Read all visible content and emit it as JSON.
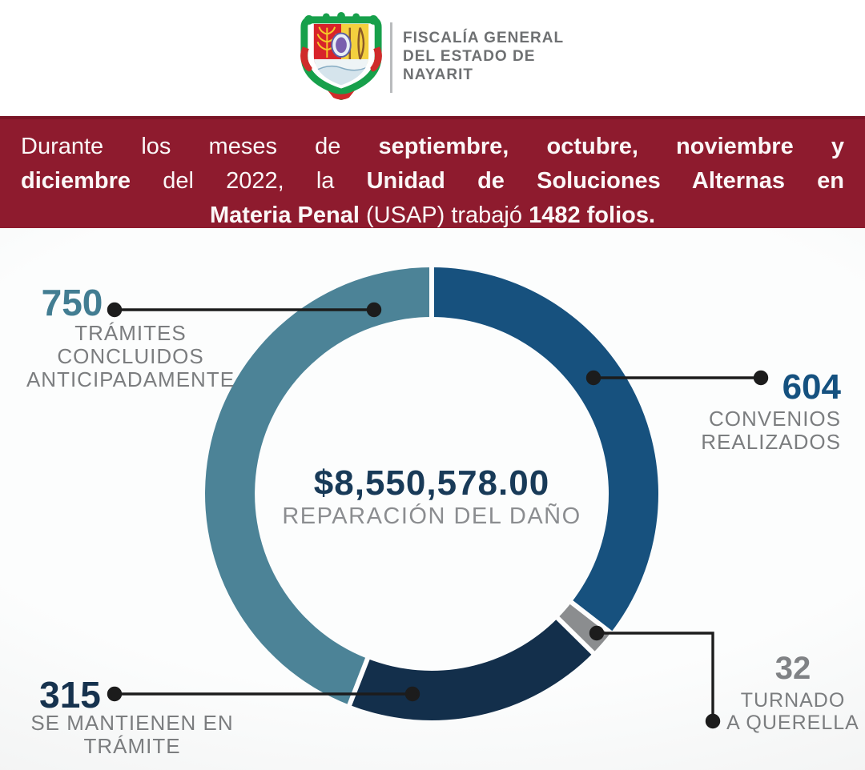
{
  "header": {
    "logo": "nayarit-coat-of-arms",
    "org_name_lines": [
      "FISCALÍA GENERAL",
      "DEL ESTADO DE",
      "NAYARIT"
    ]
  },
  "banner": {
    "bg_color": "#8e1b2e",
    "lines": [
      [
        {
          "text": "Durante los meses de ",
          "bold": false
        },
        {
          "text": "septiembre, octubre, noviembre y",
          "bold": true
        }
      ],
      [
        {
          "text": "diciembre",
          "bold": true
        },
        {
          "text": " del 2022, la ",
          "bold": false
        },
        {
          "text": "Unidad de Soluciones Alternas en",
          "bold": true
        }
      ],
      [
        {
          "text": "Materia Penal",
          "bold": true
        },
        {
          "text": " (USAP) trabajó ",
          "bold": false
        },
        {
          "text": "1482 folios.",
          "bold": true
        }
      ]
    ]
  },
  "chart_data": {
    "type": "pie",
    "subtype": "donut",
    "title": "$8,550,578.00",
    "subtitle": "REPARACIÓN DEL DAÑO",
    "total_folios_worked": 1482,
    "start_angle_deg": 0,
    "direction": "clockwise",
    "connector_color": "#1c1c1c",
    "divider_color": "#fdfdfd",
    "segments": [
      {
        "id": "convenios-realizados",
        "value": 604,
        "color": "#17517e",
        "callout_value": "604",
        "callout_value_color": "#15517f",
        "callout_lines": [
          "CONVENIOS",
          "REALIZADOS"
        ]
      },
      {
        "id": "turnado-a-querella",
        "value": 32,
        "color": "#8b8d8f",
        "callout_value": "32",
        "callout_value_color": "#808285",
        "callout_lines": [
          "TURNADO",
          "A QUERELLA"
        ]
      },
      {
        "id": "se-mantienen-en-tramite",
        "value": 315,
        "color": "#132f4b",
        "callout_value": "315",
        "callout_value_color": "#16324e",
        "callout_lines": [
          "SE MANTIENEN EN",
          "TRÁMITE"
        ]
      },
      {
        "id": "tramites-concluidos-anticipadamente",
        "value": 750,
        "color": "#4c8397",
        "callout_value": "750",
        "callout_value_color": "#427d92",
        "callout_lines": [
          "TRÁMITES CONCLUIDOS",
          "ANTICIPADAMENTE"
        ]
      }
    ]
  }
}
